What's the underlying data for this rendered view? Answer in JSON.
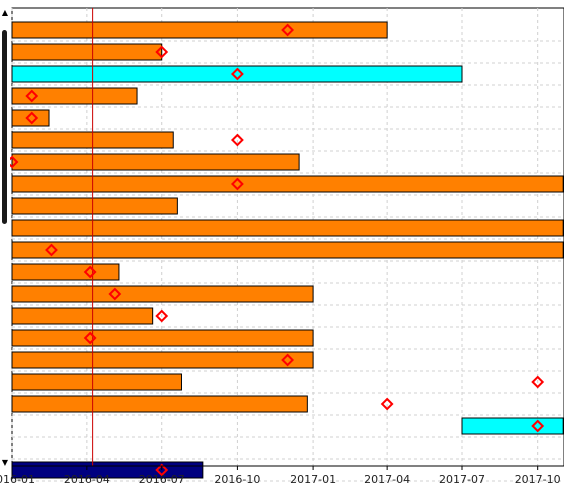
{
  "chart_data": {
    "type": "gantt",
    "x_axis": {
      "ticks": [
        "2016-01",
        "2016-04",
        "2016-07",
        "2016-10",
        "2017-01",
        "2017-04",
        "2017-07",
        "2017-10"
      ],
      "range": [
        "2016-01-01",
        "2017-11-01"
      ],
      "grid": true
    },
    "today_marker": "2016-04-08",
    "rows": [
      {
        "start": "2016-01-01",
        "end": "2017-04-01",
        "color": "#ff8000",
        "milestone": "2016-12-01"
      },
      {
        "start": "2016-01-01",
        "end": "2016-07-01",
        "color": "#ff8000",
        "milestone": "2016-07-01"
      },
      {
        "start": "2016-01-01",
        "end": "2017-07-01",
        "color": "#00ffff",
        "milestone": "2016-10-01"
      },
      {
        "start": "2016-01-01",
        "end": "2016-06-01",
        "color": "#ff8000",
        "milestone": "2016-01-25"
      },
      {
        "start": "2016-01-01",
        "end": "2016-02-15",
        "color": "#ff8000",
        "milestone": "2016-01-25"
      },
      {
        "start": "2016-01-01",
        "end": "2016-07-15",
        "color": "#ff8000",
        "milestone": "2016-10-01"
      },
      {
        "start": "2016-01-01",
        "end": "2016-12-15",
        "color": "#ff8000",
        "milestone": "2016-01-01"
      },
      {
        "start": "2016-01-01",
        "end": "2017-11-01",
        "color": "#ff8000",
        "milestone": "2016-10-01"
      },
      {
        "start": "2016-01-01",
        "end": "2016-07-20",
        "color": "#ff8000",
        "milestone": null
      },
      {
        "start": "2016-01-01",
        "end": "2017-11-01",
        "color": "#ff8000",
        "milestone": null
      },
      {
        "start": "2016-01-01",
        "end": "2017-11-01",
        "color": "#ff8000",
        "milestone": "2016-02-18"
      },
      {
        "start": "2016-01-01",
        "end": "2016-05-10",
        "color": "#ff8000",
        "milestone": "2016-04-05"
      },
      {
        "start": "2016-01-01",
        "end": "2017-01-01",
        "color": "#ff8000",
        "milestone": "2016-05-05"
      },
      {
        "start": "2016-01-01",
        "end": "2016-06-20",
        "color": "#ff8000",
        "milestone": "2016-07-01"
      },
      {
        "start": "2016-01-01",
        "end": "2017-01-01",
        "color": "#ff8000",
        "milestone": "2016-04-05"
      },
      {
        "start": "2016-01-01",
        "end": "2017-01-01",
        "color": "#ff8000",
        "milestone": "2016-12-01"
      },
      {
        "start": "2016-01-01",
        "end": "2016-07-25",
        "color": "#ff8000",
        "milestone": "2017-10-01"
      },
      {
        "start": "2016-01-01",
        "end": "2016-12-25",
        "color": "#ff8000",
        "milestone": "2017-04-01"
      },
      {
        "start": "2017-07-01",
        "end": "2017-11-01",
        "color": "#00ffff",
        "milestone": "2017-10-01"
      },
      {
        "start": null,
        "end": null,
        "color": null,
        "milestone": null
      },
      {
        "start": "2016-01-01",
        "end": "2016-08-20",
        "color": "#000080",
        "milestone": "2016-07-01"
      }
    ],
    "colors": {
      "grid": "#d0d0d0",
      "bar_outline": "#000000",
      "milestone": "#ff0000",
      "today_line": "#cc0000"
    }
  }
}
